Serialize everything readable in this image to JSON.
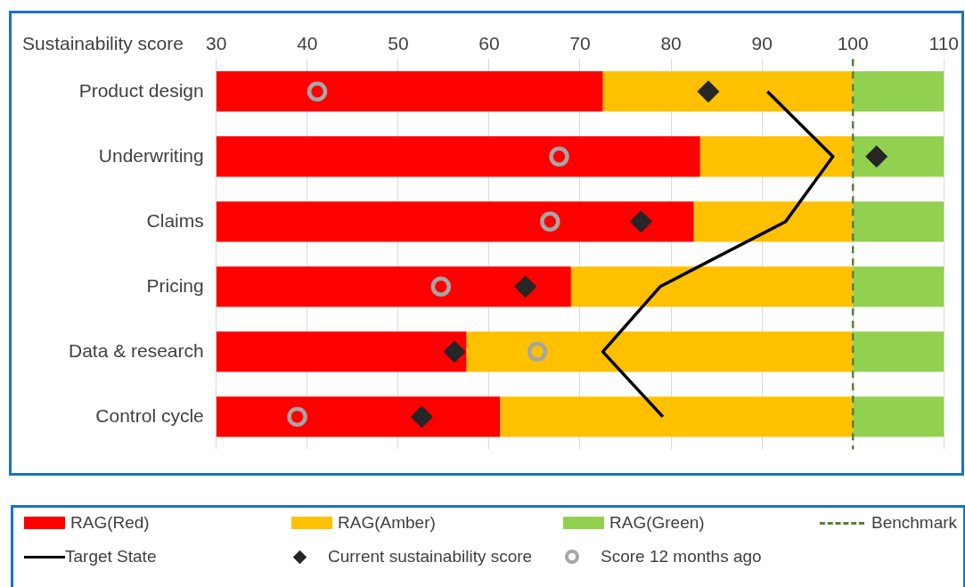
{
  "chart_data": {
    "type": "bar",
    "orientation": "horizontal",
    "xlabel": "Sustainability score",
    "categories": [
      "Product design",
      "Underwriting",
      "Claims",
      "Pricing",
      "Data & research",
      "Control cycle"
    ],
    "series": [
      {
        "name": "RAG(Red)",
        "color": "#ff0000",
        "base": [
          30,
          30,
          30,
          30,
          30,
          30
        ],
        "values": [
          42.5,
          53.2,
          52.5,
          39,
          27.5,
          31.2
        ]
      },
      {
        "name": "RAG(Amber)",
        "color": "#ffc000",
        "base": [
          72.5,
          83.2,
          82.5,
          69,
          57.5,
          61.2
        ],
        "values": [
          27.5,
          16.8,
          17.5,
          31,
          42.5,
          38.8
        ]
      },
      {
        "name": "RAG(Green)",
        "color": "#92d050",
        "base": [
          100,
          100,
          100,
          100,
          100,
          100
        ],
        "values": [
          10,
          10,
          10,
          10,
          10,
          10
        ]
      },
      {
        "name": "Target State",
        "type": "line",
        "color": "#000000",
        "marker": "none",
        "line_style": "solid",
        "values": [
          90.6,
          97.8,
          92.6,
          78.8,
          72.5,
          79.1
        ]
      },
      {
        "name": "Current sustainability score",
        "type": "scatter",
        "color": "#262626",
        "marker": "diamond",
        "values": [
          84.1,
          102.6,
          76.7,
          64,
          56.2,
          52.6
        ]
      },
      {
        "name": "Score 12 months ago",
        "type": "scatter",
        "color": "#a6a6a6",
        "marker": "circle",
        "values": [
          41.1,
          67.7,
          66.7,
          54.7,
          65.3,
          38.9
        ]
      }
    ],
    "xlim": [
      30,
      110
    ],
    "xticks": [
      30,
      40,
      50,
      60,
      70,
      80,
      90,
      100,
      110
    ],
    "ref_lines": [
      {
        "axis": "x",
        "value": 100,
        "label": "Benchmark",
        "color": "#548235",
        "line_style": "dashed"
      }
    ],
    "grid": "x",
    "legend": "bottom"
  }
}
